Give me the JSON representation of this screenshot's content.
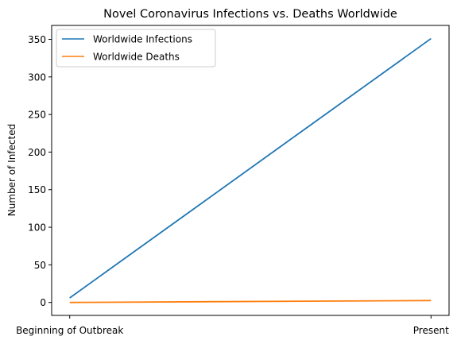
{
  "chart_data": {
    "type": "line",
    "title": "Novel Coronavirus Infections vs. Deaths Worldwide",
    "xlabel": "",
    "ylabel": "Number of Infected",
    "categories": [
      "Beginning of Outbreak",
      "Present"
    ],
    "series": [
      {
        "name": "Worldwide Infections",
        "color": "#1f77b4",
        "values": [
          6,
          351
        ]
      },
      {
        "name": "Worldwide Deaths",
        "color": "#ff7f0e",
        "values": [
          0,
          2.5
        ]
      }
    ],
    "ylim": [
      -17.25,
      368.5
    ],
    "yticks": [
      0,
      50,
      100,
      150,
      200,
      250,
      300,
      350
    ],
    "grid": false,
    "legend": "upper-left"
  }
}
